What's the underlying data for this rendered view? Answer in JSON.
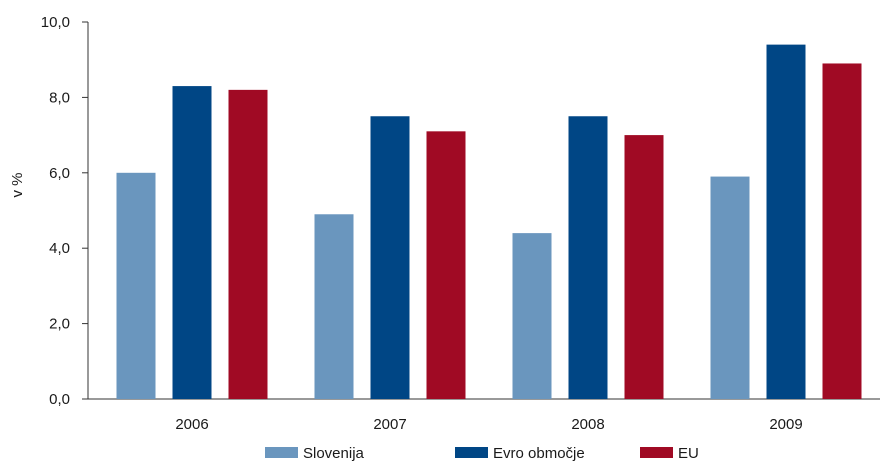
{
  "chart_data": {
    "type": "bar",
    "title": "",
    "xlabel": "",
    "ylabel": "v %",
    "categories": [
      "2006",
      "2007",
      "2008",
      "2009"
    ],
    "series": [
      {
        "name": "Slovenija",
        "color": "#6a96be",
        "values": [
          6.0,
          4.9,
          4.4,
          5.9
        ]
      },
      {
        "name": "Evro območje",
        "color": "#004685",
        "values": [
          8.3,
          7.5,
          7.5,
          9.4
        ]
      },
      {
        "name": "EU",
        "color": "#a00a24",
        "values": [
          8.2,
          7.1,
          7.0,
          8.9
        ]
      }
    ],
    "ylim": [
      0,
      10
    ],
    "yticks": [
      "0,0",
      "2,0",
      "4,0",
      "6,0",
      "8,0",
      "10,0"
    ],
    "ytick_values": [
      0,
      2,
      4,
      6,
      8,
      10
    ],
    "grid": false,
    "legend_position": "bottom"
  }
}
